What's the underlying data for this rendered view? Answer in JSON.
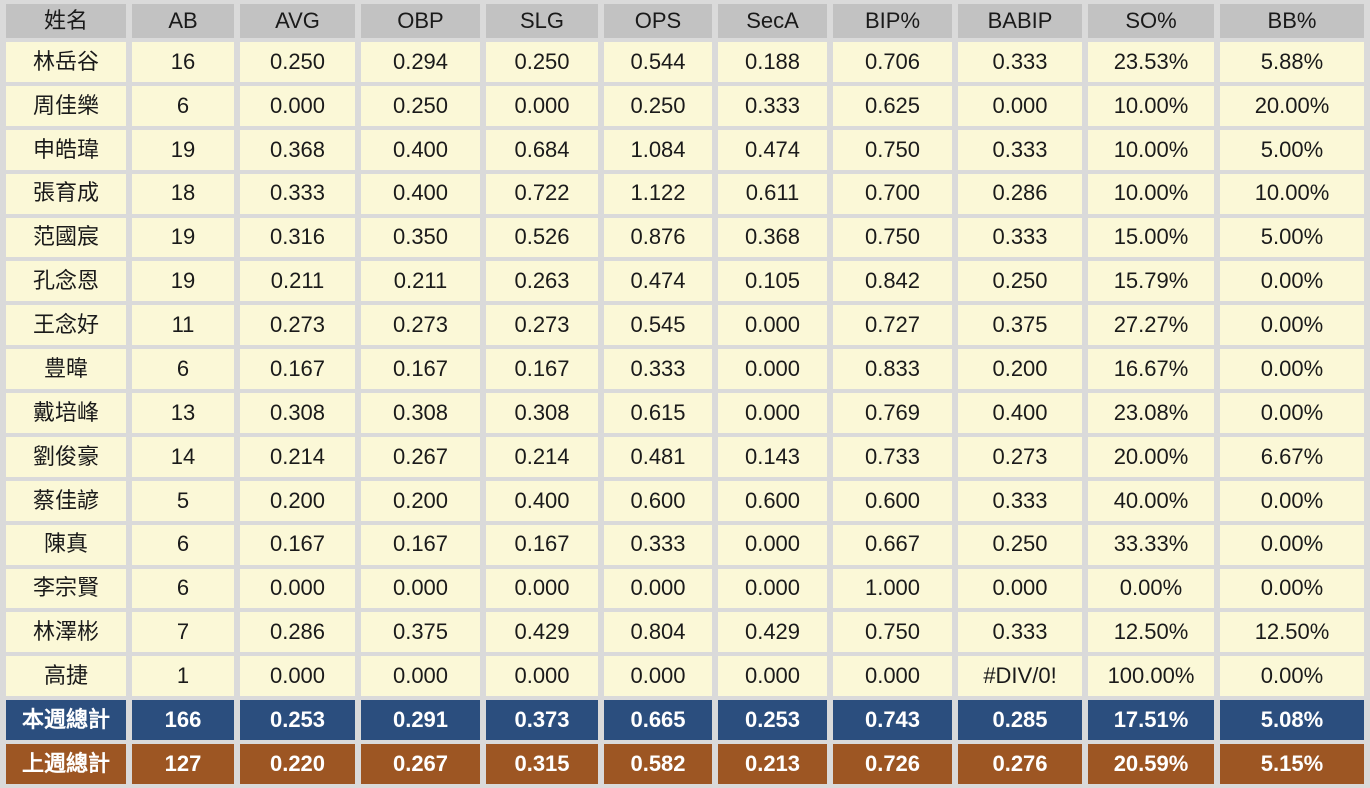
{
  "colors": {
    "gap_bg": "#DADADA",
    "header_bg": "#C2C2C2",
    "row_bg": "#FBF8D7",
    "this_week_bg": "#2B4E7E",
    "last_week_bg": "#9D5623",
    "text": "#1A1A1A",
    "summary_text": "#FFFFFF"
  },
  "chart_data": {
    "type": "table",
    "columns": [
      "姓名",
      "AB",
      "AVG",
      "OBP",
      "SLG",
      "OPS",
      "SecA",
      "BIP%",
      "BABIP",
      "SO%",
      "BB%"
    ],
    "rows": [
      {
        "name": "林岳谷",
        "values": [
          "16",
          "0.250",
          "0.294",
          "0.250",
          "0.544",
          "0.188",
          "0.706",
          "0.333",
          "23.53%",
          "5.88%"
        ]
      },
      {
        "name": "周佳樂",
        "values": [
          "6",
          "0.000",
          "0.250",
          "0.000",
          "0.250",
          "0.333",
          "0.625",
          "0.000",
          "10.00%",
          "20.00%"
        ]
      },
      {
        "name": "申皓瑋",
        "values": [
          "19",
          "0.368",
          "0.400",
          "0.684",
          "1.084",
          "0.474",
          "0.750",
          "0.333",
          "10.00%",
          "5.00%"
        ]
      },
      {
        "name": "張育成",
        "values": [
          "18",
          "0.333",
          "0.400",
          "0.722",
          "1.122",
          "0.611",
          "0.700",
          "0.286",
          "10.00%",
          "10.00%"
        ]
      },
      {
        "name": "范國宸",
        "values": [
          "19",
          "0.316",
          "0.350",
          "0.526",
          "0.876",
          "0.368",
          "0.750",
          "0.333",
          "15.00%",
          "5.00%"
        ]
      },
      {
        "name": "孔念恩",
        "values": [
          "19",
          "0.211",
          "0.211",
          "0.263",
          "0.474",
          "0.105",
          "0.842",
          "0.250",
          "15.79%",
          "0.00%"
        ]
      },
      {
        "name": "王念好",
        "values": [
          "11",
          "0.273",
          "0.273",
          "0.273",
          "0.545",
          "0.000",
          "0.727",
          "0.375",
          "27.27%",
          "0.00%"
        ]
      },
      {
        "name": "豊暐",
        "values": [
          "6",
          "0.167",
          "0.167",
          "0.167",
          "0.333",
          "0.000",
          "0.833",
          "0.200",
          "16.67%",
          "0.00%"
        ]
      },
      {
        "name": "戴培峰",
        "values": [
          "13",
          "0.308",
          "0.308",
          "0.308",
          "0.615",
          "0.000",
          "0.769",
          "0.400",
          "23.08%",
          "0.00%"
        ]
      },
      {
        "name": "劉俊豪",
        "values": [
          "14",
          "0.214",
          "0.267",
          "0.214",
          "0.481",
          "0.143",
          "0.733",
          "0.273",
          "20.00%",
          "6.67%"
        ]
      },
      {
        "name": "蔡佳諺",
        "values": [
          "5",
          "0.200",
          "0.200",
          "0.400",
          "0.600",
          "0.600",
          "0.600",
          "0.333",
          "40.00%",
          "0.00%"
        ]
      },
      {
        "name": "陳真",
        "values": [
          "6",
          "0.167",
          "0.167",
          "0.167",
          "0.333",
          "0.000",
          "0.667",
          "0.250",
          "33.33%",
          "0.00%"
        ]
      },
      {
        "name": "李宗賢",
        "values": [
          "6",
          "0.000",
          "0.000",
          "0.000",
          "0.000",
          "0.000",
          "1.000",
          "0.000",
          "0.00%",
          "0.00%"
        ]
      },
      {
        "name": "林澤彬",
        "values": [
          "7",
          "0.286",
          "0.375",
          "0.429",
          "0.804",
          "0.429",
          "0.750",
          "0.333",
          "12.50%",
          "12.50%"
        ]
      },
      {
        "name": "高捷",
        "values": [
          "1",
          "0.000",
          "0.000",
          "0.000",
          "0.000",
          "0.000",
          "0.000",
          "#DIV/0!",
          "100.00%",
          "0.00%"
        ]
      }
    ],
    "summary": [
      {
        "label": "本週總計",
        "style": "this-week",
        "values": [
          "166",
          "0.253",
          "0.291",
          "0.373",
          "0.665",
          "0.253",
          "0.743",
          "0.285",
          "17.51%",
          "5.08%"
        ]
      },
      {
        "label": "上週總計",
        "style": "last-week",
        "values": [
          "127",
          "0.220",
          "0.267",
          "0.315",
          "0.582",
          "0.213",
          "0.726",
          "0.276",
          "20.59%",
          "5.15%"
        ]
      }
    ]
  }
}
